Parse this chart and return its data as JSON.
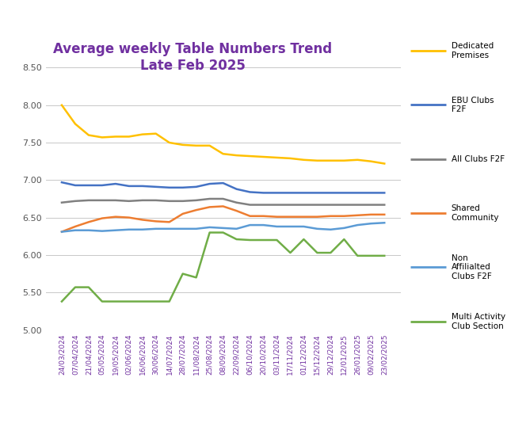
{
  "title": "Average weekly Table Numbers Trend\nLate Feb 2025",
  "title_color": "#7030A0",
  "background_color": "#ffffff",
  "ylim": [
    5.0,
    8.5
  ],
  "yticks": [
    5.0,
    5.5,
    6.0,
    6.5,
    7.0,
    7.5,
    8.0,
    8.5
  ],
  "x_labels": [
    "24/03/2024",
    "07/04/2024",
    "21/04/2024",
    "05/05/2024",
    "19/05/2024",
    "02/06/2024",
    "16/06/2024",
    "30/06/2024",
    "14/07/2024",
    "28/07/2024",
    "11/08/2024",
    "25/08/2024",
    "08/09/2024",
    "22/09/2024",
    "06/10/2024",
    "20/10/2024",
    "03/11/2024",
    "17/11/2024",
    "01/12/2024",
    "15/12/2024",
    "29/12/2024",
    "12/01/2025",
    "26/01/2025",
    "09/02/2025",
    "23/02/2025"
  ],
  "series": [
    {
      "label": "Dedicated\nPremises",
      "color": "#FFC000",
      "values": [
        8.0,
        7.75,
        7.6,
        7.57,
        7.58,
        7.58,
        7.61,
        7.62,
        7.5,
        7.47,
        7.46,
        7.46,
        7.35,
        7.33,
        7.32,
        7.31,
        7.3,
        7.29,
        7.27,
        7.26,
        7.26,
        7.26,
        7.27,
        7.25,
        7.22
      ]
    },
    {
      "label": "EBU Clubs\nF2F",
      "color": "#4472C4",
      "values": [
        6.97,
        6.93,
        6.93,
        6.93,
        6.95,
        6.92,
        6.92,
        6.91,
        6.9,
        6.9,
        6.91,
        6.95,
        6.96,
        6.88,
        6.84,
        6.83,
        6.83,
        6.83,
        6.83,
        6.83,
        6.83,
        6.83,
        6.83,
        6.83,
        6.83
      ]
    },
    {
      "label": "All Clubs F2F",
      "color": "#808080",
      "values": [
        6.7,
        6.72,
        6.73,
        6.73,
        6.73,
        6.72,
        6.73,
        6.73,
        6.72,
        6.72,
        6.73,
        6.75,
        6.75,
        6.7,
        6.67,
        6.67,
        6.67,
        6.67,
        6.67,
        6.67,
        6.67,
        6.67,
        6.67,
        6.67,
        6.67
      ]
    },
    {
      "label": "Shared\nCommunity",
      "color": "#ED7D31",
      "values": [
        6.31,
        6.38,
        6.44,
        6.49,
        6.51,
        6.5,
        6.47,
        6.45,
        6.44,
        6.55,
        6.6,
        6.64,
        6.65,
        6.59,
        6.52,
        6.52,
        6.51,
        6.51,
        6.51,
        6.51,
        6.52,
        6.52,
        6.53,
        6.54,
        6.54
      ]
    },
    {
      "label": "Non\nAffilialted\nClubs F2F",
      "color": "#5B9BD5",
      "values": [
        6.31,
        6.33,
        6.33,
        6.32,
        6.33,
        6.34,
        6.34,
        6.35,
        6.35,
        6.35,
        6.35,
        6.37,
        6.36,
        6.35,
        6.4,
        6.4,
        6.38,
        6.38,
        6.38,
        6.35,
        6.34,
        6.36,
        6.4,
        6.42,
        6.43
      ]
    },
    {
      "label": "Multi Activity\nClub Section",
      "color": "#70AD47",
      "values": [
        5.38,
        5.57,
        5.57,
        5.38,
        5.38,
        5.38,
        5.38,
        5.38,
        5.38,
        5.75,
        5.7,
        6.3,
        6.3,
        6.21,
        6.2,
        6.2,
        6.2,
        6.03,
        6.21,
        6.03,
        6.03,
        6.21,
        5.99,
        5.99,
        5.99
      ]
    }
  ],
  "legend_labels": [
    "Dedicated\nPremises",
    "EBU Clubs\nF2F",
    "All Clubs F2F",
    "Shared\nCommunity",
    "Non\nAffilialted\nClubs F2F",
    "Multi Activity\nClub Section"
  ],
  "legend_colors": [
    "#FFC000",
    "#4472C4",
    "#808080",
    "#ED7D31",
    "#5B9BD5",
    "#70AD47"
  ]
}
